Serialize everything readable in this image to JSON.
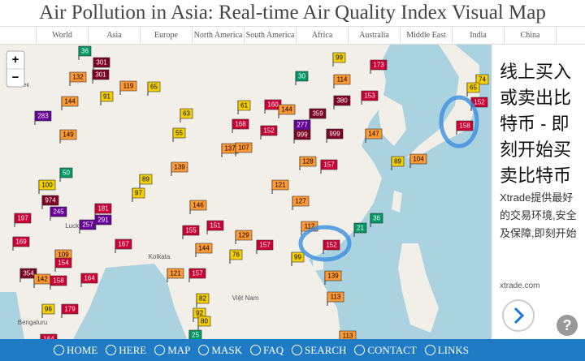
{
  "header": {
    "title": "Air Pollution in Asia: Real-time Air Quality Index Visual Map"
  },
  "tabs": [
    "World",
    "Asia",
    "Europe",
    "North America",
    "South America",
    "Africa",
    "Australia",
    "Middle East",
    "India",
    "China"
  ],
  "map": {
    "zoom_in": "+",
    "zoom_out": "−",
    "labels": [
      "Бишкек",
      "Lucknow",
      "Kolkata",
      "Bengaluru",
      "Việt Nam"
    ],
    "stations": [
      36,
      301,
      301,
      132,
      119,
      65,
      91,
      144,
      283,
      149,
      50,
      100,
      974,
      245,
      197,
      181,
      257,
      291,
      169,
      167,
      109,
      154,
      164,
      354,
      142,
      158,
      96,
      179,
      164,
      89,
      97,
      139,
      55,
      63,
      61,
      160,
      144,
      359,
      380,
      153,
      114,
      99,
      173,
      30,
      168,
      152,
      277,
      999,
      999,
      147,
      158,
      74,
      65,
      152,
      104,
      89,
      137,
      107,
      128,
      157,
      121,
      127,
      146,
      151,
      155,
      129,
      157,
      112,
      152,
      21,
      36,
      144,
      157,
      121,
      76,
      99,
      139,
      113,
      82,
      92,
      80,
      25,
      113
    ]
  },
  "ad": {
    "headline": "线上买入或卖出比特币 - 即刻开始买卖比特币",
    "body": "Xtrade提供最好的交易环境,安全及保障,即刻开始",
    "domain": "xtrade.com",
    "help": "?"
  },
  "footer": {
    "links": [
      "HOME",
      "HERE",
      "MAP",
      "MASK",
      "FAQ",
      "SEARCH",
      "CONTACT",
      "LINKS"
    ]
  }
}
